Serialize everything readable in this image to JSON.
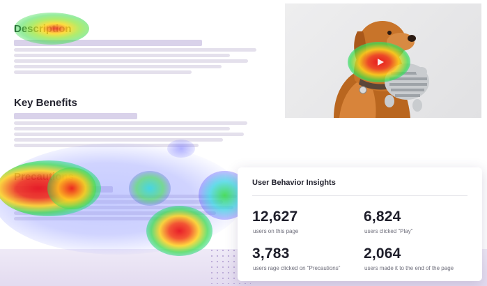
{
  "article": {
    "description_heading": "Description",
    "benefits_heading": "Key Benefits",
    "precautions_heading": "Precautions"
  },
  "hero": {
    "subject": "dog holding a plush toy",
    "play_icon": "play-icon"
  },
  "insights": {
    "title": "User Behavior Insights",
    "stats": [
      {
        "value": "12,627",
        "label": "users on this page"
      },
      {
        "value": "6,824",
        "label": "users clicked “Play”"
      },
      {
        "value": "3,783",
        "label": "users rage clicked on “Precautions”"
      },
      {
        "value": "2,064",
        "label": "users made it to the end of the page"
      }
    ]
  },
  "colors": {
    "accent": "#e3dbf0",
    "heat_hot": "#e8141e",
    "heat_warm": "#ffd21e",
    "heat_mid": "#3ddc4e",
    "heat_cool": "#2fd6e0",
    "heat_cold": "#5b4cff"
  }
}
